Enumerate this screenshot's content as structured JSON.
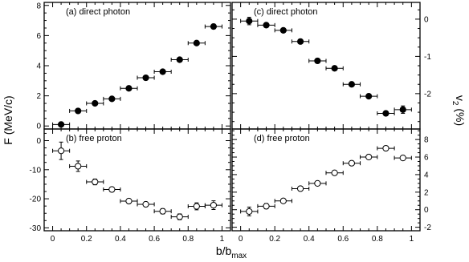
{
  "figure": {
    "y_left_title": "F (MeV/c)",
    "y_right_title": "v",
    "y_right_title_sub": "2",
    "y_right_title_unit": " (%)",
    "x_title": "b/b",
    "x_title_sub": "max"
  },
  "chart_data": [
    {
      "type": "scatter",
      "panel": "a",
      "label": "(a) direct photon",
      "marker": "filled-circle",
      "xlim": [
        -0.05,
        1.05
      ],
      "ylim": [
        -0.2,
        8.2
      ],
      "xticks": [
        0,
        0.2,
        0.4,
        0.6,
        0.8,
        1
      ],
      "xtick_labels": [
        "",
        "",
        "",
        "",
        "",
        ""
      ],
      "yticks": [
        0,
        2,
        4,
        6,
        8
      ],
      "ytick_labels": [
        "0",
        "2",
        "4",
        "6",
        "8"
      ],
      "x": [
        0.05,
        0.15,
        0.25,
        0.35,
        0.45,
        0.55,
        0.65,
        0.75,
        0.85,
        0.95
      ],
      "y": [
        0.1,
        1.0,
        1.5,
        1.8,
        2.5,
        3.2,
        3.6,
        4.4,
        5.5,
        6.6
      ],
      "xerr": [
        0.05,
        0.05,
        0.05,
        0.05,
        0.05,
        0.05,
        0.05,
        0.05,
        0.05,
        0.05
      ],
      "yerr": [
        0.1,
        0.1,
        0.1,
        0.1,
        0.1,
        0.1,
        0.1,
        0.1,
        0.1,
        0.15
      ]
    },
    {
      "type": "scatter",
      "panel": "b",
      "label": "(b) free proton",
      "marker": "open-circle",
      "xlim": [
        -0.05,
        1.05
      ],
      "ylim": [
        -31,
        4
      ],
      "xticks": [
        0,
        0.2,
        0.4,
        0.6,
        0.8,
        1
      ],
      "xtick_labels": [
        "0",
        "0.2",
        "0.4",
        "0.6",
        "0.8",
        "1"
      ],
      "yticks": [
        0,
        -10,
        -20,
        -30
      ],
      "ytick_labels": [
        "0",
        "-10",
        "-20",
        "-30"
      ],
      "x": [
        0.05,
        0.15,
        0.25,
        0.35,
        0.45,
        0.55,
        0.65,
        0.75,
        0.85,
        0.95
      ],
      "y": [
        -3.5,
        -8.8,
        -14.2,
        -16.8,
        -20.8,
        -21.9,
        -24.3,
        -26.2,
        -22.6,
        -22.2
      ],
      "xerr": [
        0.05,
        0.05,
        0.05,
        0.05,
        0.05,
        0.05,
        0.05,
        0.05,
        0.05,
        0.05
      ],
      "yerr": [
        3.0,
        1.8,
        1.0,
        0.8,
        0.5,
        0.8,
        0.9,
        1.0,
        1.2,
        1.5
      ]
    },
    {
      "type": "scatter",
      "panel": "c",
      "label": "(c) direct photon",
      "marker": "filled-circle",
      "xlim": [
        -0.05,
        1.05
      ],
      "ylim": [
        -2.95,
        0.45
      ],
      "xticks": [
        0,
        0.2,
        0.4,
        0.6,
        0.8,
        1
      ],
      "xtick_labels": [
        "",
        "",
        "",
        "",
        "",
        ""
      ],
      "yticks": [
        0,
        -1,
        -2
      ],
      "ytick_labels": [
        "0",
        "-1",
        "-2"
      ],
      "x": [
        0.05,
        0.15,
        0.25,
        0.35,
        0.45,
        0.55,
        0.65,
        0.75,
        0.85,
        0.95
      ],
      "y": [
        -0.05,
        -0.16,
        -0.3,
        -0.6,
        -1.12,
        -1.32,
        -1.75,
        -2.07,
        -2.53,
        -2.43
      ],
      "xerr": [
        0.05,
        0.05,
        0.05,
        0.05,
        0.05,
        0.05,
        0.05,
        0.05,
        0.05,
        0.05
      ],
      "yerr": [
        0.1,
        0.06,
        0.05,
        0.05,
        0.05,
        0.05,
        0.05,
        0.05,
        0.06,
        0.1
      ]
    },
    {
      "type": "scatter",
      "panel": "d",
      "label": "(d) free proton",
      "marker": "open-circle",
      "xlim": [
        -0.05,
        1.05
      ],
      "ylim": [
        -2.4,
        9.2
      ],
      "xticks": [
        0,
        0.2,
        0.4,
        0.6,
        0.8,
        1
      ],
      "xtick_labels": [
        "0",
        "0.2",
        "0.4",
        "0.6",
        "0.8",
        "1"
      ],
      "yticks": [
        -2,
        0,
        2,
        4,
        6,
        8
      ],
      "ytick_labels": [
        "-2",
        "0",
        "2",
        "4",
        "6",
        "8"
      ],
      "x": [
        0.05,
        0.15,
        0.25,
        0.35,
        0.45,
        0.55,
        0.65,
        0.75,
        0.85,
        0.95
      ],
      "y": [
        -0.2,
        0.4,
        1.0,
        2.4,
        3.0,
        4.2,
        5.3,
        6.0,
        7.0,
        5.9
      ],
      "xerr": [
        0.05,
        0.05,
        0.05,
        0.05,
        0.05,
        0.05,
        0.05,
        0.05,
        0.05,
        0.05
      ],
      "yerr": [
        0.5,
        0.3,
        0.2,
        0.15,
        0.15,
        0.15,
        0.15,
        0.15,
        0.2,
        0.2
      ]
    }
  ]
}
